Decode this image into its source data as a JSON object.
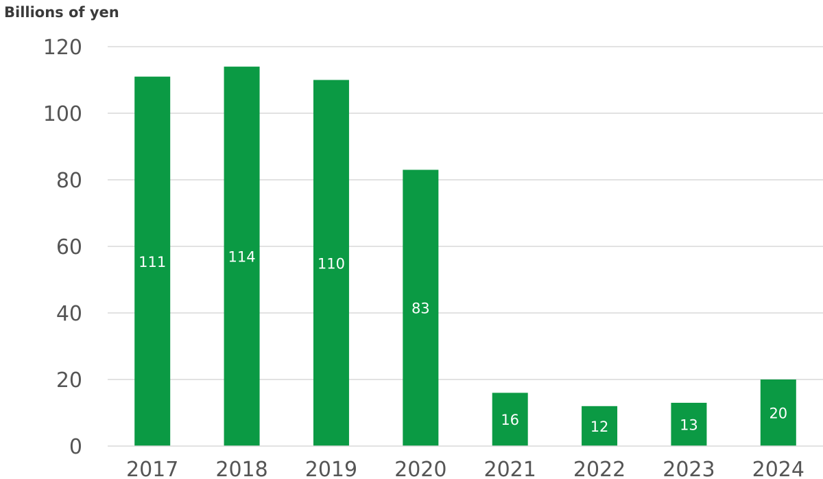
{
  "chart_data": {
    "type": "bar",
    "ylabel": "Billions of yen",
    "categories": [
      "2017",
      "2018",
      "2019",
      "2020",
      "2021",
      "2022",
      "2023",
      "2024"
    ],
    "values": [
      111,
      114,
      110,
      83,
      16,
      12,
      13,
      20
    ],
    "data_labels": [
      "111",
      "114",
      "110",
      "83",
      "16",
      "12",
      "13",
      "20"
    ],
    "ylim": [
      0,
      120
    ],
    "yticks": [
      0,
      20,
      40,
      60,
      80,
      100,
      120
    ],
    "grid": true,
    "bar_color": "#0b9a44",
    "label_color": "#ffffff"
  }
}
